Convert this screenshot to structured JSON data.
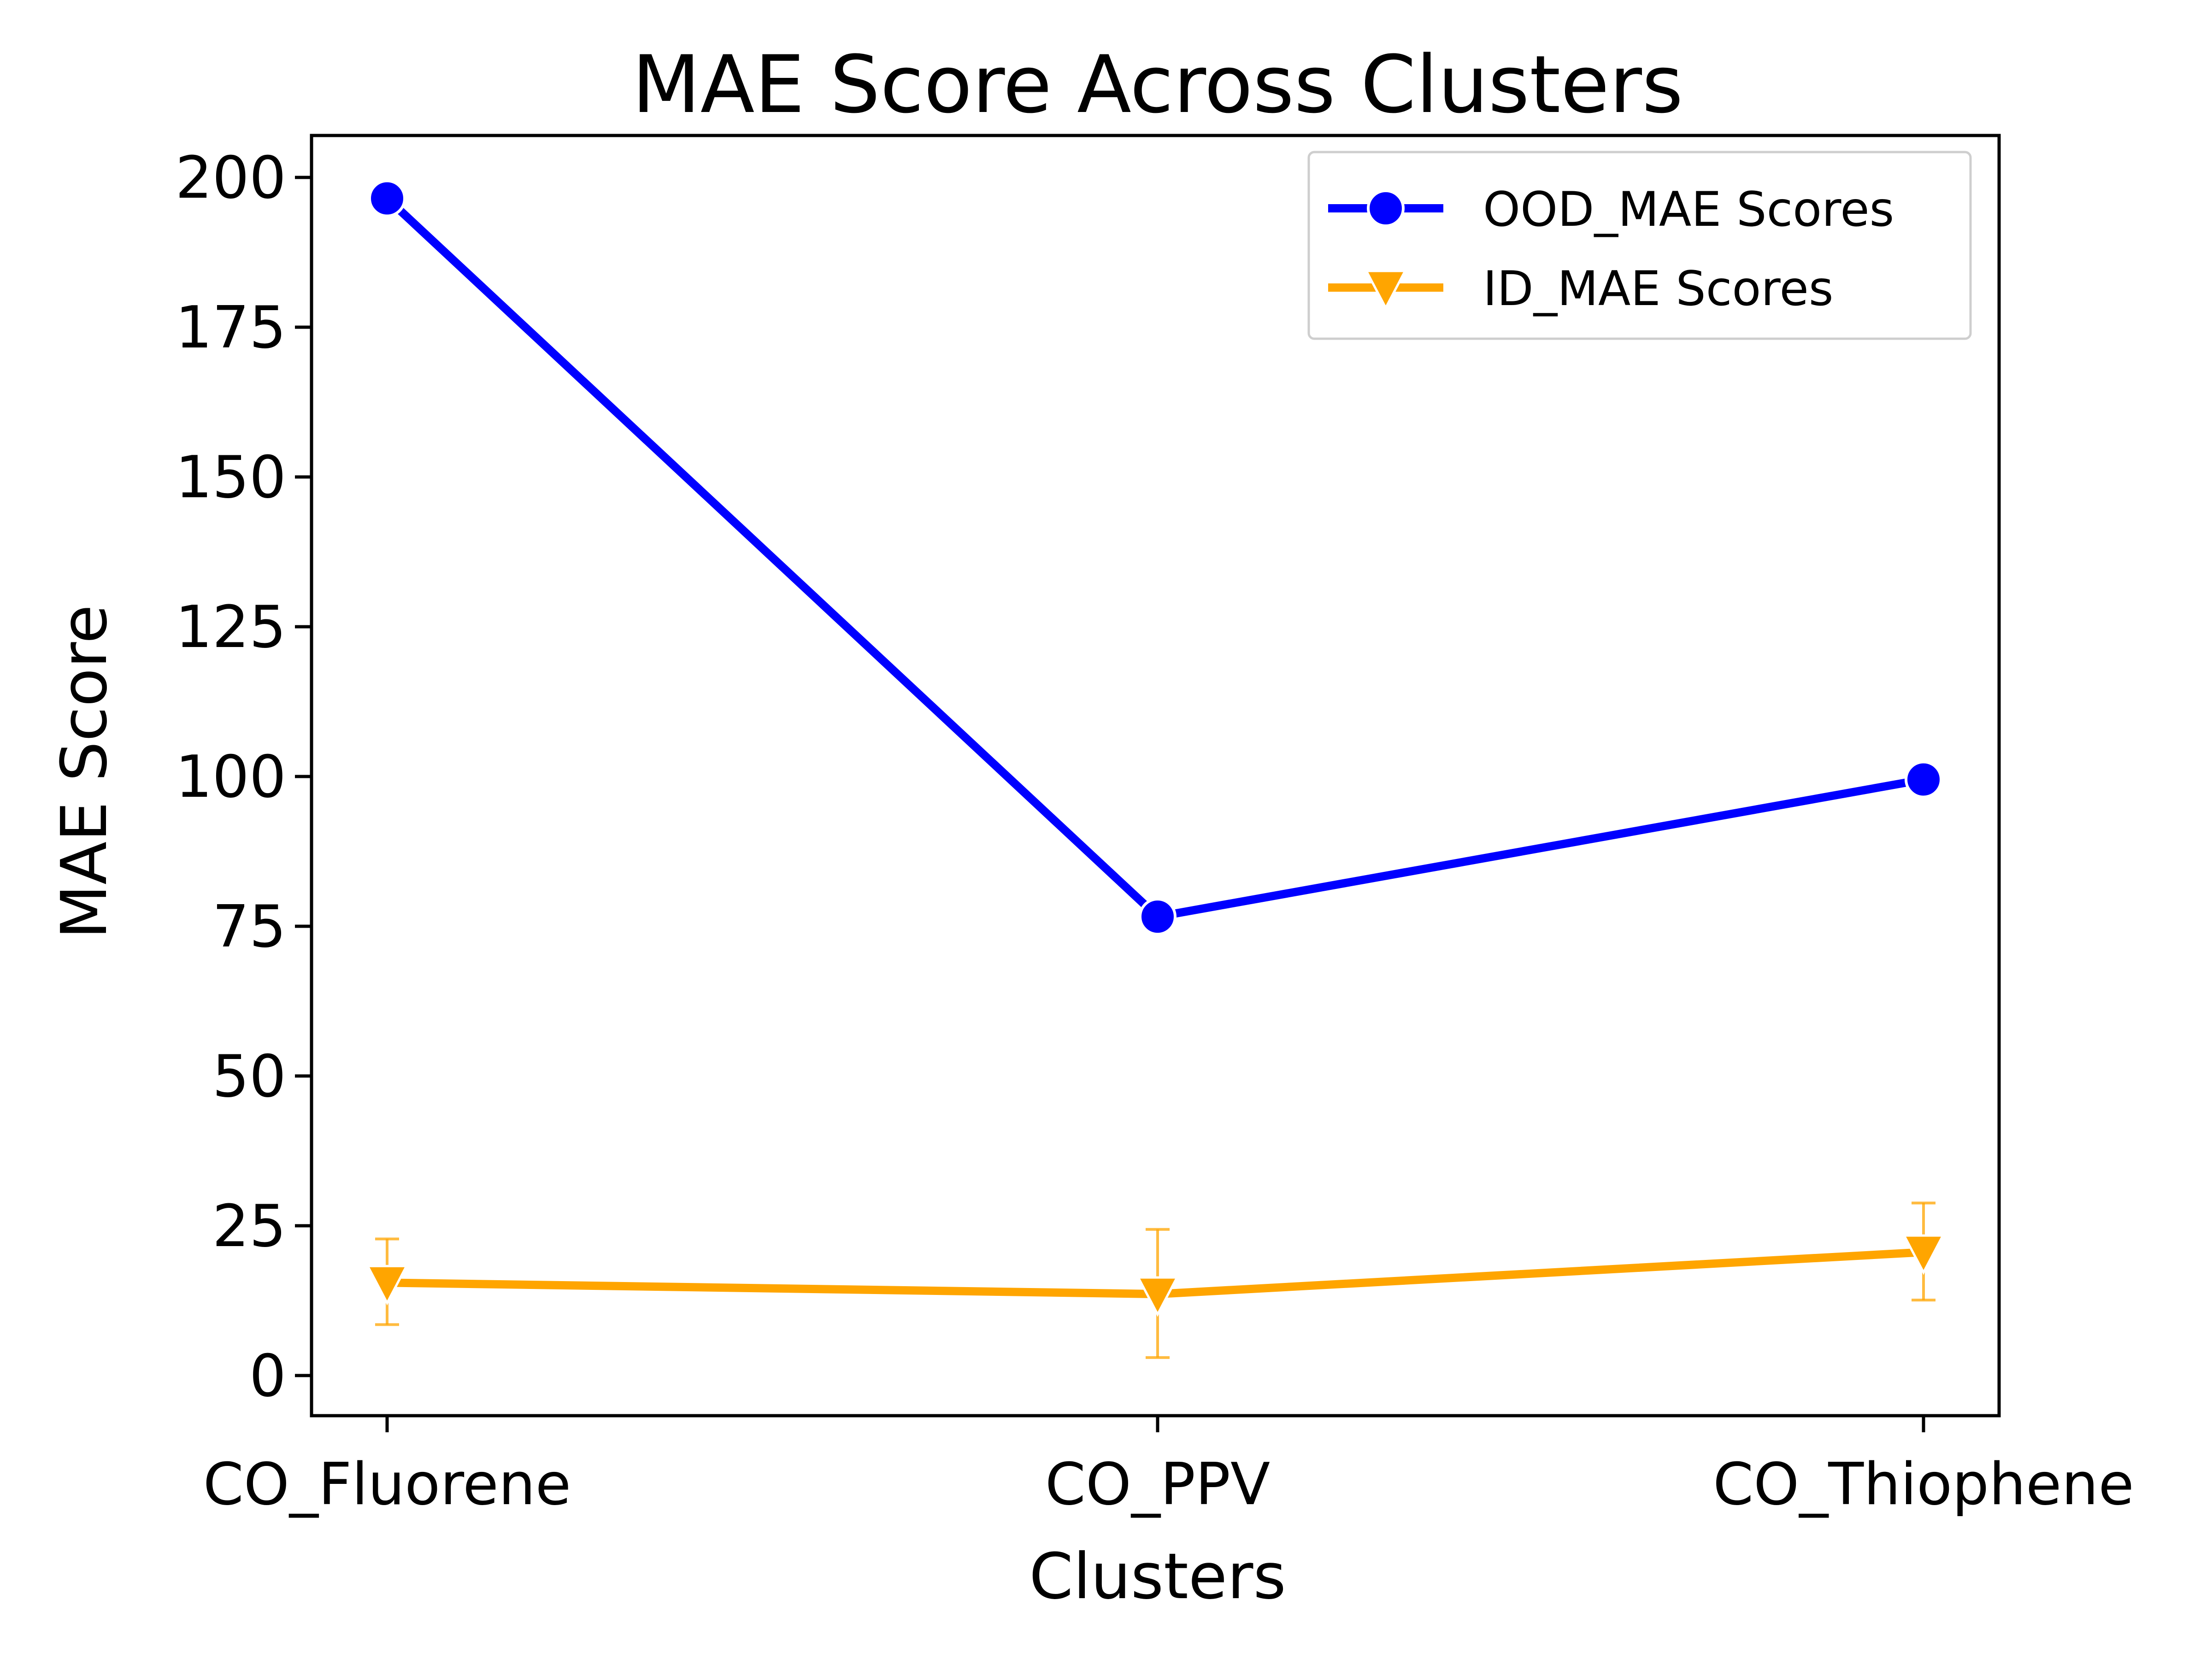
{
  "chart_data": {
    "type": "line",
    "title": "MAE Score Across Clusters",
    "xlabel": "Clusters",
    "ylabel": "MAE Score",
    "categories": [
      "CO_Fluorene",
      "CO_PPV",
      "CO_Thiophene"
    ],
    "ylim": [
      -6.7,
      207
    ],
    "yticks": [
      0,
      25,
      50,
      75,
      100,
      125,
      150,
      175,
      200
    ],
    "grid": false,
    "legend_position": "upper right",
    "series": [
      {
        "name": "OOD_MAE Scores",
        "color": "#0000ff",
        "marker": "circle",
        "values": [
          196.5,
          76.6,
          99.5
        ]
      },
      {
        "name": "ID_MAE Scores",
        "color": "#ffa500",
        "marker": "triangle-down",
        "values": [
          15.5,
          13.6,
          20.6
        ],
        "error_low": [
          8.5,
          3.0,
          12.6
        ],
        "error_high": [
          22.8,
          24.4,
          28.8
        ]
      }
    ]
  }
}
